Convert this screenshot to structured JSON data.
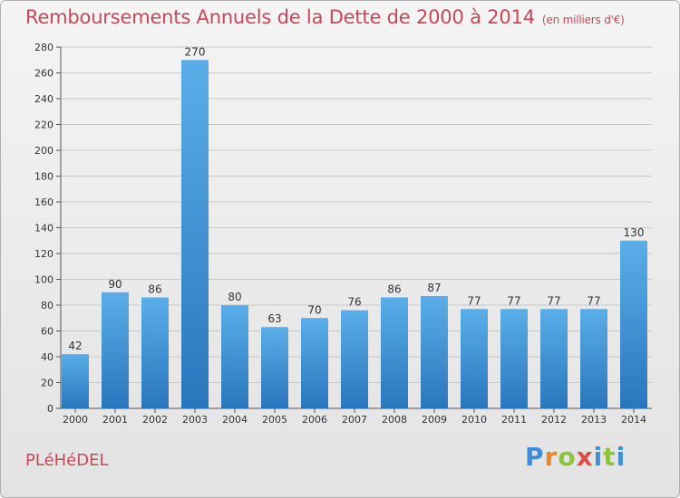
{
  "header": {
    "title": "Remboursements Annuels de la Dette de 2000 à 2014",
    "subtitle": "(en milliers d'€)"
  },
  "footer": {
    "commune": "PLéHéDEL",
    "logo": {
      "letters": [
        "P",
        "r",
        "o",
        "x",
        "i",
        "t",
        "i"
      ],
      "colors": [
        "#3f8ed6",
        "#e9892a",
        "#8cc33f",
        "#e34a4a",
        "#3f8ed6",
        "#8cc33f",
        "#3f8ed6"
      ]
    }
  },
  "chart_data": {
    "type": "bar",
    "title": "Remboursements Annuels de la Dette de 2000 à 2014",
    "subtitle": "(en milliers d'€)",
    "categories": [
      "2000",
      "2001",
      "2002",
      "2003",
      "2004",
      "2005",
      "2006",
      "2007",
      "2008",
      "2009",
      "2010",
      "2011",
      "2012",
      "2013",
      "2014"
    ],
    "values": [
      42,
      90,
      86,
      270,
      80,
      63,
      70,
      76,
      86,
      87,
      77,
      77,
      77,
      77,
      130
    ],
    "ylim": [
      0,
      280
    ],
    "yticks": [
      0,
      20,
      40,
      60,
      80,
      100,
      120,
      140,
      160,
      180,
      200,
      220,
      240,
      260,
      280
    ],
    "grid": true,
    "bar_color": "#4a9de0",
    "bar_color_dark": "#2f7bc0"
  }
}
